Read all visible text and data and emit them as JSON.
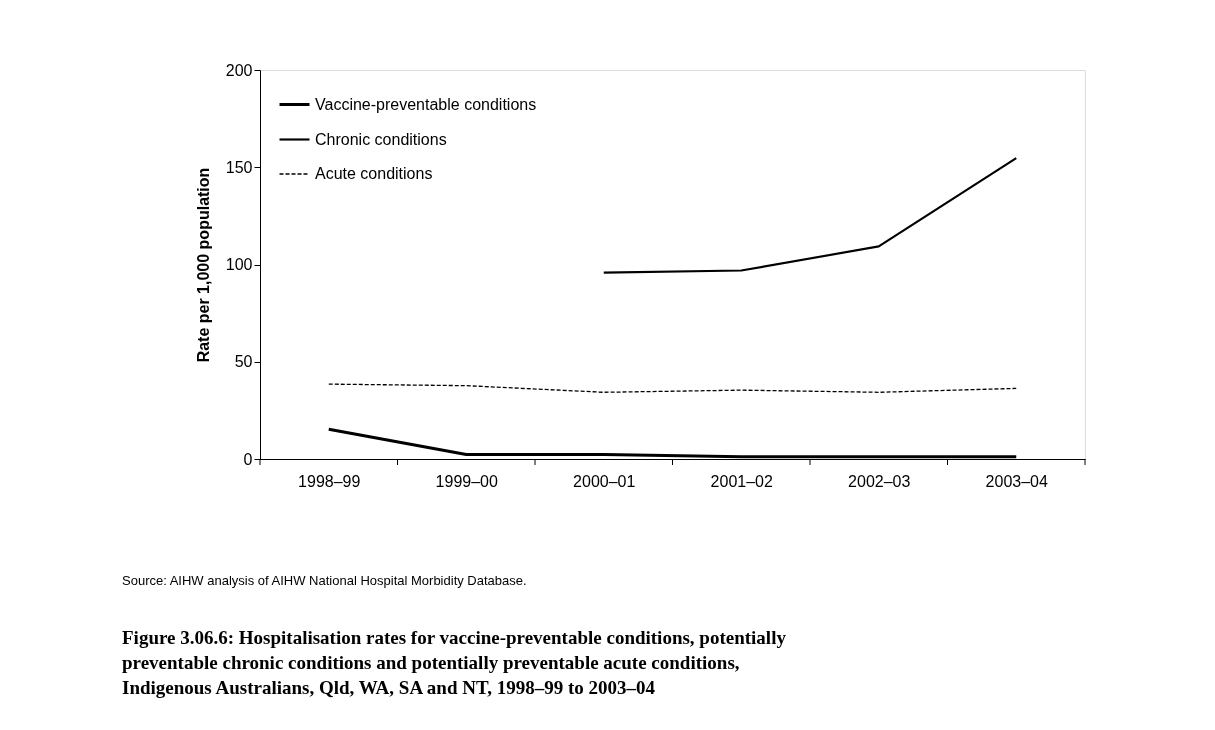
{
  "chart_data": {
    "type": "line",
    "title": "Figure 3.06.6: Hospitalisation rates for vaccine-preventable conditions, potentially preventable chronic conditions and potentially preventable acute conditions, Indigenous Australians, Qld, WA, SA and NT, 1998–99 to 2003–04",
    "ylabel": "Rate per 1,000 population",
    "annotations": [
      "Source: AIHW analysis of AIHW National Hospital Morbidity Database."
    ],
    "categories": [
      "1998–99",
      "1999–00",
      "2000–01",
      "2001–02",
      "2002–03",
      "2003–04"
    ],
    "series": [
      {
        "name": "Vaccine-preventable conditions",
        "color": "#000000",
        "line_style": "solid",
        "values": [
          15.3,
          2.3,
          2.3,
          1.1,
          1.1,
          1.1
        ]
      },
      {
        "name": "Chronic conditions",
        "color": "#000000",
        "line_style": "solid",
        "values": [
          null,
          null,
          95.8,
          96.9,
          109.3,
          154.7
        ]
      },
      {
        "name": "Acute conditions",
        "color": "#000000",
        "line_style": "dashed",
        "values": [
          38.5,
          37.7,
          34.3,
          35.4,
          34.3,
          36.3
        ]
      }
    ],
    "ylim": [
      0,
      200
    ],
    "yticks": [
      0,
      50,
      100,
      150,
      200
    ],
    "grid": false,
    "legend": "top left",
    "marker": "none"
  }
}
